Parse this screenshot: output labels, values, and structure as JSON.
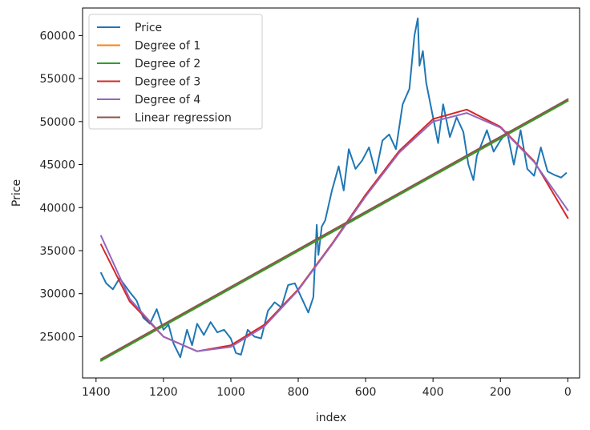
{
  "chart_data": {
    "type": "line",
    "title": "",
    "xlabel": "index",
    "ylabel": "Price",
    "xlim": [
      1440,
      -35
    ],
    "ylim": [
      20200,
      63200
    ],
    "x_inverted": true,
    "xticks": [
      1400,
      1200,
      1000,
      800,
      600,
      400,
      200,
      0
    ],
    "xtick_labels": [
      "1400",
      "1200",
      "1000",
      "800",
      "600",
      "400",
      "200",
      "0"
    ],
    "yticks": [
      25000,
      30000,
      35000,
      40000,
      45000,
      50000,
      55000,
      60000
    ],
    "ytick_labels": [
      "25000",
      "30000",
      "35000",
      "40000",
      "45000",
      "50000",
      "55000",
      "60000"
    ],
    "grid": false,
    "legend_position": "upper left",
    "series": [
      {
        "name": "Price",
        "color": "#1f77b4",
        "x": [
          1385,
          1370,
          1350,
          1330,
          1300,
          1280,
          1260,
          1240,
          1220,
          1200,
          1185,
          1170,
          1150,
          1130,
          1115,
          1100,
          1080,
          1060,
          1040,
          1020,
          1000,
          985,
          970,
          950,
          930,
          910,
          890,
          870,
          850,
          830,
          810,
          790,
          770,
          755,
          745,
          740,
          730,
          720,
          700,
          680,
          665,
          650,
          630,
          610,
          590,
          570,
          550,
          530,
          510,
          490,
          470,
          455,
          445,
          440,
          430,
          420,
          400,
          385,
          370,
          350,
          330,
          310,
          295,
          280,
          270,
          260,
          240,
          220,
          200,
          180,
          160,
          140,
          120,
          100,
          80,
          60,
          40,
          20,
          5
        ],
        "y": [
          32400,
          31200,
          30500,
          31800,
          30200,
          29200,
          27200,
          26500,
          28200,
          25800,
          26400,
          24200,
          22600,
          25800,
          24000,
          26500,
          25200,
          26700,
          25500,
          25800,
          24800,
          23100,
          22900,
          25800,
          25000,
          24800,
          28000,
          29000,
          28400,
          31000,
          31200,
          29500,
          27800,
          29600,
          38000,
          34500,
          37800,
          38500,
          42000,
          44800,
          42000,
          46800,
          44500,
          45500,
          47000,
          44000,
          47800,
          48500,
          46800,
          52000,
          53800,
          60000,
          62000,
          56500,
          58200,
          54500,
          50500,
          47500,
          52000,
          48200,
          50500,
          48800,
          45000,
          43200,
          46000,
          47000,
          49000,
          46500,
          47800,
          48800,
          45000,
          49000,
          44500,
          43700,
          47000,
          44200,
          43800,
          43500,
          44000
        ]
      },
      {
        "name": "Degree of 1",
        "color": "#ff7f0e",
        "x": [
          1385,
          0
        ],
        "y": [
          22200,
          52400
        ]
      },
      {
        "name": "Degree of 2",
        "color": "#2ca02c",
        "x": [
          1385,
          0
        ],
        "y": [
          22200,
          52400
        ]
      },
      {
        "name": "Degree of 3",
        "color": "#d62728",
        "x": [
          1385,
          1300,
          1200,
          1100,
          1000,
          900,
          800,
          700,
          600,
          500,
          400,
          300,
          200,
          100,
          0
        ],
        "y": [
          35700,
          29100,
          25000,
          23300,
          24000,
          26400,
          30500,
          35800,
          41500,
          46600,
          50300,
          51400,
          49400,
          45400,
          38800
        ]
      },
      {
        "name": "Degree of 4",
        "color": "#9467bd",
        "x": [
          1385,
          1300,
          1200,
          1100,
          1000,
          900,
          800,
          700,
          600,
          500,
          400,
          300,
          200,
          100,
          0
        ],
        "y": [
          36700,
          29400,
          25000,
          23300,
          23800,
          26200,
          30400,
          35700,
          41300,
          46400,
          50000,
          51000,
          49300,
          45300,
          39700
        ]
      },
      {
        "name": "Linear regression",
        "color": "#8c564b",
        "x": [
          1385,
          0
        ],
        "y": [
          22400,
          52600
        ]
      }
    ]
  }
}
